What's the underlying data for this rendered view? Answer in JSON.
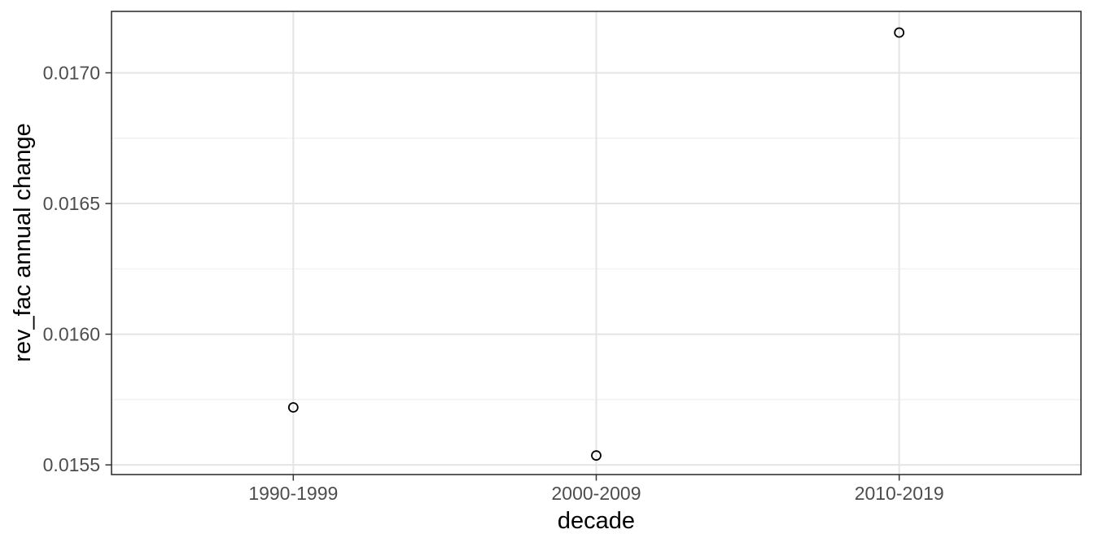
{
  "chart_data": {
    "type": "scatter",
    "title": "",
    "xlabel": "decade",
    "ylabel": "rev_fac annual change",
    "categories": [
      "1990-1999",
      "2000-2009",
      "2010-2019"
    ],
    "values": [
      0.01572,
      0.015536,
      0.017154
    ],
    "y_ticks": [
      0.0155,
      0.016,
      0.0165,
      0.017
    ],
    "y_tick_labels": [
      "0.0155",
      "0.0160",
      "0.0165",
      "0.0170"
    ],
    "y_minor_ticks": [
      0.01575,
      0.01625,
      0.01675
    ],
    "ylim": [
      0.015463,
      0.017235
    ],
    "grid": "on",
    "legend": "none",
    "point_style": "open-circle",
    "theme": {
      "panel_background": "#ffffff",
      "panel_border": "#333333",
      "grid_major": "#e4e4e4",
      "grid_minor": "#efefef",
      "tick_color": "#333333",
      "tick_label_color": "#4d4d4d",
      "axis_title_color": "#000000",
      "point_color": "#000000"
    }
  }
}
